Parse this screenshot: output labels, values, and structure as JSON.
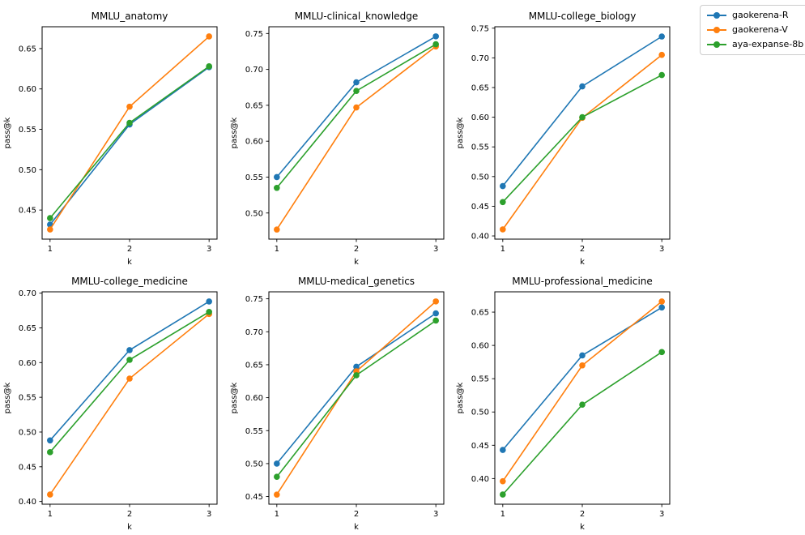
{
  "figure": {
    "background": "#ffffff",
    "text_color": "#000000",
    "spine_color": "#000000"
  },
  "legend": {
    "position": "top-right",
    "entries": [
      {
        "label": "gaokerena-R",
        "color": "#1f77b4"
      },
      {
        "label": "gaokerena-V",
        "color": "#ff7f0e"
      },
      {
        "label": "aya-expanse-8b",
        "color": "#2ca02c"
      }
    ]
  },
  "chart_data": [
    {
      "type": "line",
      "title": "MMLU_anatomy",
      "xlabel": "k",
      "ylabel": "pass@k",
      "x": [
        1,
        2,
        3
      ],
      "xlim": [
        0.9,
        3.1
      ],
      "ylim": [
        0.414,
        0.677
      ],
      "yticks": [
        0.45,
        0.5,
        0.55,
        0.6,
        0.65
      ],
      "grid": false,
      "series": [
        {
          "name": "gaokerena-R",
          "values": [
            0.432,
            0.556,
            0.627
          ]
        },
        {
          "name": "gaokerena-V",
          "values": [
            0.426,
            0.578,
            0.665
          ]
        },
        {
          "name": "aya-expanse-8b",
          "values": [
            0.44,
            0.558,
            0.628
          ]
        }
      ]
    },
    {
      "type": "line",
      "title": "MMLU-clinical_knowledge",
      "xlabel": "k",
      "ylabel": "pass@k",
      "x": [
        1,
        2,
        3
      ],
      "xlim": [
        0.9,
        3.1
      ],
      "ylim": [
        0.4636,
        0.7594
      ],
      "yticks": [
        0.5,
        0.55,
        0.6,
        0.65,
        0.7,
        0.75
      ],
      "grid": false,
      "series": [
        {
          "name": "gaokerena-R",
          "values": [
            0.55,
            0.682,
            0.746
          ]
        },
        {
          "name": "gaokerena-V",
          "values": [
            0.477,
            0.647,
            0.732
          ]
        },
        {
          "name": "aya-expanse-8b",
          "values": [
            0.535,
            0.67,
            0.735
          ]
        }
      ]
    },
    {
      "type": "line",
      "title": "MMLU-college_biology",
      "xlabel": "k",
      "ylabel": "pass@k",
      "x": [
        1,
        2,
        3
      ],
      "xlim": [
        0.9,
        3.1
      ],
      "ylim": [
        0.3946,
        0.7524
      ],
      "yticks": [
        0.4,
        0.45,
        0.5,
        0.55,
        0.6,
        0.65,
        0.7,
        0.75
      ],
      "grid": false,
      "series": [
        {
          "name": "gaokerena-R",
          "values": [
            0.484,
            0.652,
            0.736
          ]
        },
        {
          "name": "gaokerena-V",
          "values": [
            0.411,
            0.599,
            0.705
          ]
        },
        {
          "name": "aya-expanse-8b",
          "values": [
            0.457,
            0.6,
            0.671
          ]
        }
      ]
    },
    {
      "type": "line",
      "title": "MMLU-college_medicine",
      "xlabel": "k",
      "ylabel": "pass@k",
      "x": [
        1,
        2,
        3
      ],
      "xlim": [
        0.9,
        3.1
      ],
      "ylim": [
        0.3961,
        0.7019
      ],
      "yticks": [
        0.4,
        0.45,
        0.5,
        0.55,
        0.6,
        0.65,
        0.7
      ],
      "grid": false,
      "series": [
        {
          "name": "gaokerena-R",
          "values": [
            0.488,
            0.618,
            0.688
          ]
        },
        {
          "name": "gaokerena-V",
          "values": [
            0.41,
            0.577,
            0.67
          ]
        },
        {
          "name": "aya-expanse-8b",
          "values": [
            0.471,
            0.604,
            0.673
          ]
        }
      ]
    },
    {
      "type": "line",
      "title": "MMLU-medical_genetics",
      "xlabel": "k",
      "ylabel": "pass@k",
      "x": [
        1,
        2,
        3
      ],
      "xlim": [
        0.9,
        3.1
      ],
      "ylim": [
        0.4384,
        0.7606
      ],
      "yticks": [
        0.45,
        0.5,
        0.55,
        0.6,
        0.65,
        0.7,
        0.75
      ],
      "grid": false,
      "series": [
        {
          "name": "gaokerena-R",
          "values": [
            0.5,
            0.647,
            0.728
          ]
        },
        {
          "name": "gaokerena-V",
          "values": [
            0.453,
            0.64,
            0.746
          ]
        },
        {
          "name": "aya-expanse-8b",
          "values": [
            0.48,
            0.634,
            0.717
          ]
        }
      ]
    },
    {
      "type": "line",
      "title": "MMLU-professional_medicine",
      "xlabel": "k",
      "ylabel": "pass@k",
      "x": [
        1,
        2,
        3
      ],
      "xlim": [
        0.9,
        3.1
      ],
      "ylim": [
        0.3615,
        0.6805
      ],
      "yticks": [
        0.4,
        0.45,
        0.5,
        0.55,
        0.6,
        0.65
      ],
      "grid": false,
      "series": [
        {
          "name": "gaokerena-R",
          "values": [
            0.443,
            0.585,
            0.657
          ]
        },
        {
          "name": "gaokerena-V",
          "values": [
            0.396,
            0.57,
            0.666
          ]
        },
        {
          "name": "aya-expanse-8b",
          "values": [
            0.376,
            0.511,
            0.59
          ]
        }
      ]
    }
  ]
}
